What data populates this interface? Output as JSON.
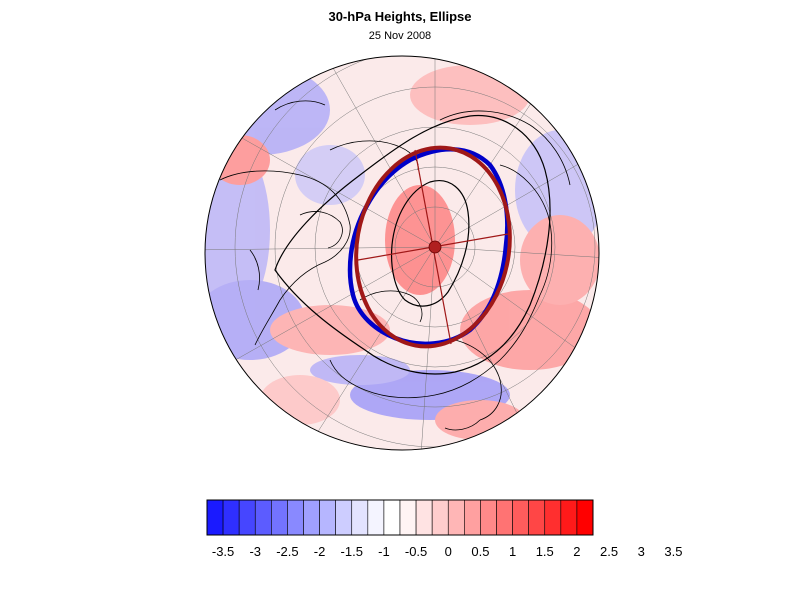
{
  "title": "30-hPa Heights, Ellipse",
  "date": "25 Nov 2008",
  "colorbar": {
    "tick_labels": [
      "-3.5",
      "-3",
      "-2.5",
      "-2",
      "-1.5",
      "-1",
      "-0.5",
      "0",
      "0.5",
      "1",
      "1.5",
      "2",
      "2.5",
      "3",
      "3.5"
    ],
    "colors": [
      "#1a1aff",
      "#2f2fff",
      "#4646ff",
      "#5c5cff",
      "#7373ff",
      "#8989ff",
      "#a0a0ff",
      "#b6b6ff",
      "#cdcdff",
      "#e3e3ff",
      "#f4f4ff",
      "#ffffff",
      "#fff4f4",
      "#ffe3e3",
      "#ffcdcd",
      "#ffb6b6",
      "#ffa0a0",
      "#ff8989",
      "#ff7373",
      "#ff5c5c",
      "#ff4646",
      "#ff2f2f",
      "#ff1a1a",
      "#ff0000"
    ]
  },
  "colors": {
    "ellipse_fit": "#a01818",
    "vortex_edge": "#0000c8",
    "contour": "#000000",
    "center_marker": "#b02020"
  }
}
